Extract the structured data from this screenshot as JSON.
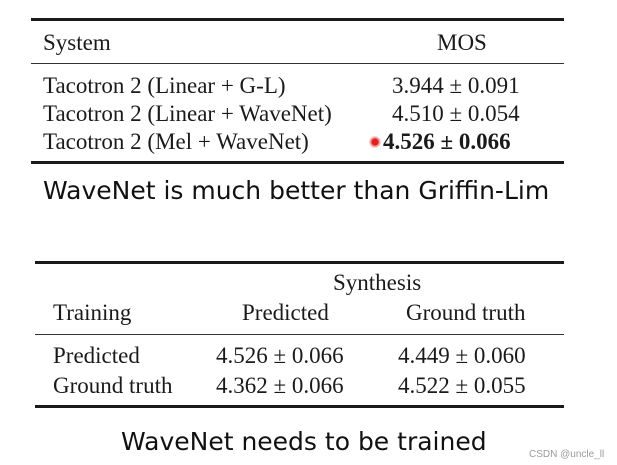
{
  "table1": {
    "header": {
      "system": "System",
      "mos": "MOS"
    },
    "rows": [
      {
        "system": "Tacotron 2 (Linear + G-L)",
        "mos": "3.944 ± 0.091"
      },
      {
        "system": "Tacotron 2 (Linear + WaveNet)",
        "mos": "4.510 ± 0.054"
      },
      {
        "system": "Tacotron 2 (Mel + WaveNet)",
        "mos": "4.526 ± 0.066"
      }
    ]
  },
  "caption1": "WaveNet is much better than Griffin-Lim",
  "table2": {
    "group_header": "Synthesis",
    "header": {
      "training": "Training",
      "predicted": "Predicted",
      "ground_truth": "Ground truth"
    },
    "rows": [
      {
        "training": "Predicted",
        "predicted": "4.526 ± 0.066",
        "ground_truth": "4.449 ± 0.060"
      },
      {
        "training": "Ground truth",
        "predicted": "4.362 ± 0.066",
        "ground_truth": "4.522 ± 0.055"
      }
    ]
  },
  "caption2": "WaveNet needs to be trained",
  "watermark": "CSDN @uncle_ll",
  "cursor_icon": "red-pointer-dot"
}
